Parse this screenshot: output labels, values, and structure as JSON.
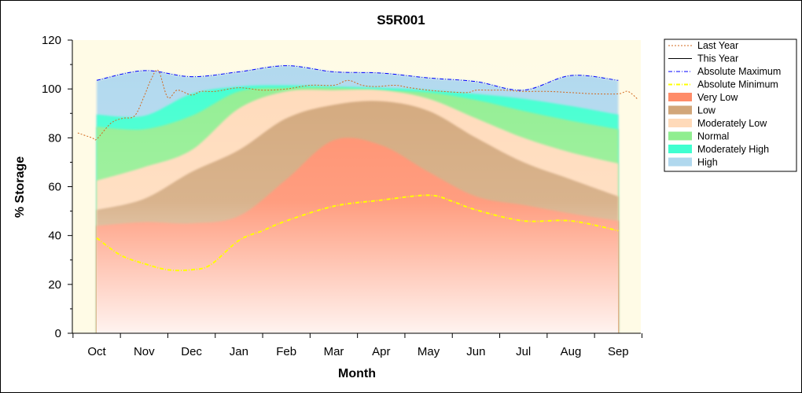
{
  "chart_data": {
    "type": "area",
    "title": "S5R001",
    "xlabel": "Month",
    "ylabel": "% Storage",
    "ylim": [
      0,
      120
    ],
    "yticks": [
      0,
      20,
      40,
      60,
      80,
      100,
      120
    ],
    "categories": [
      "Oct",
      "Nov",
      "Dec",
      "Jan",
      "Feb",
      "Mar",
      "Apr",
      "May",
      "Jun",
      "Jul",
      "Aug",
      "Sep"
    ],
    "legend_position": "right",
    "bands": [
      {
        "name": "Very Low",
        "color": "#ff8c69",
        "upper": [
          44,
          45.5,
          45,
          48,
          63,
          79,
          77,
          66,
          56,
          52.5,
          49,
          46
        ]
      },
      {
        "name": "Low",
        "color": "#d2a679",
        "upper": [
          50.5,
          55,
          66,
          75,
          88,
          93.5,
          95,
          91,
          80,
          70,
          63,
          56
        ]
      },
      {
        "name": "Moderately Low",
        "color": "#ffdab9",
        "upper": [
          62.5,
          68,
          75,
          92,
          99,
          99.5,
          99.5,
          96,
          88,
          80,
          74,
          69.5
        ]
      },
      {
        "name": "Normal",
        "color": "#90ee90",
        "upper": [
          84.5,
          83.5,
          89,
          99,
          100.5,
          100.5,
          99.5,
          98.5,
          95.5,
          91,
          87,
          83.5
        ]
      },
      {
        "name": "Moderately High",
        "color": "#40ffd0",
        "upper": [
          89.5,
          89,
          98,
          101,
          101.5,
          101,
          100.5,
          99.5,
          98,
          96,
          93,
          89.5
        ]
      },
      {
        "name": "High",
        "color": "#b0d8ee",
        "upper": [
          103.5,
          107.5,
          105,
          107,
          109.5,
          107,
          106.5,
          104.5,
          103,
          99.5,
          105.5,
          103.5
        ]
      }
    ],
    "series": [
      {
        "name": "Last Year",
        "color": "#d2691e",
        "style": "dotted",
        "x": [
          -0.4,
          -0.1,
          0.0,
          0.3,
          0.55,
          0.8,
          1.0,
          1.15,
          1.3,
          1.5,
          1.7,
          2.0,
          2.2,
          2.5,
          3.0,
          3.5,
          4.0,
          4.5,
          5.0,
          5.3,
          5.6,
          5.9,
          6.3,
          6.6,
          7.0,
          7.3,
          7.8,
          8.0,
          8.3,
          8.6,
          9.0,
          9.5,
          10.0,
          10.5,
          11.0,
          11.2,
          11.4
        ],
        "y": [
          82,
          80,
          79.5,
          86,
          88,
          89,
          97,
          104,
          107.5,
          96.5,
          99.5,
          97.5,
          99,
          99,
          100.5,
          99.5,
          100,
          101.5,
          101.5,
          103.5,
          101.5,
          101,
          101.5,
          100.5,
          99.5,
          99,
          98.5,
          99.5,
          99.5,
          99.5,
          99,
          99,
          98.5,
          98,
          98,
          99,
          96
        ]
      },
      {
        "name": "This Year",
        "color": "#000000",
        "style": "solid",
        "x": [],
        "y": []
      },
      {
        "name": "Absolute Maximum",
        "color": "#0000ff",
        "style": "dash-dot",
        "x": [
          0,
          1,
          2,
          3,
          4,
          5,
          6,
          7,
          8,
          9,
          10,
          11
        ],
        "y": [
          103.5,
          107.5,
          105,
          107,
          109.5,
          107,
          106.5,
          104.5,
          103,
          99.5,
          105.5,
          103.5
        ]
      },
      {
        "name": "Absolute Minimum",
        "color": "#ffff00",
        "style": "dash-dot",
        "x": [
          0,
          0.5,
          1,
          1.5,
          2,
          2.4,
          3,
          3.5,
          4,
          5,
          6,
          7,
          7.5,
          8,
          9,
          10,
          11
        ],
        "y": [
          39,
          32,
          28.5,
          26,
          26,
          28,
          38,
          42,
          46,
          52,
          54.5,
          56.5,
          54,
          50.5,
          46,
          46,
          42
        ]
      }
    ]
  }
}
